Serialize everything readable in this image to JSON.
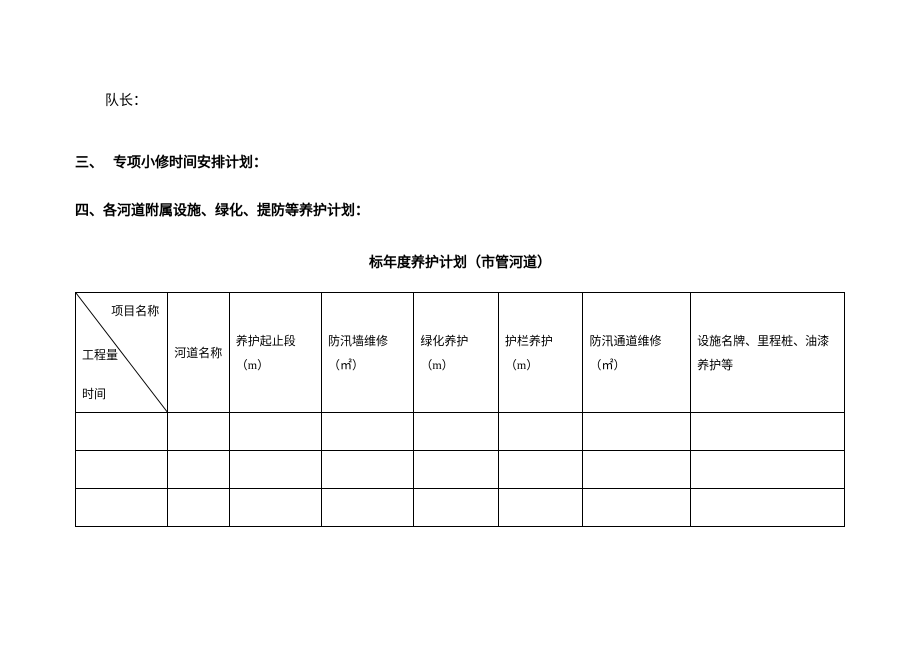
{
  "text": {
    "captain": "队长：",
    "section3_num": "三、",
    "section3_title": "专项小修时间安排计划：",
    "section4": "四、各河道附属设施、绿化、提防等养护计划：",
    "table_title": "标年度养护计划（市管河道）"
  },
  "table": {
    "diag": {
      "top": "项目名称",
      "mid": "工程量",
      "bot": "时间"
    },
    "headers": [
      "河道名称",
      "养护起止段（m）",
      "防汛墙维修（㎡）",
      "绿化养护（m）",
      "护栏养护（m）",
      "防汛通道维修（㎡）",
      "设施名牌、里程桩、油漆养护等"
    ],
    "row_count": 3
  },
  "style": {
    "text_color": "#000000",
    "background": "#ffffff",
    "border_color": "#000000",
    "font_family": "SimSun",
    "body_fontsize": 14,
    "cell_fontsize": 12,
    "header_row_height": 120,
    "body_row_height": 38
  }
}
